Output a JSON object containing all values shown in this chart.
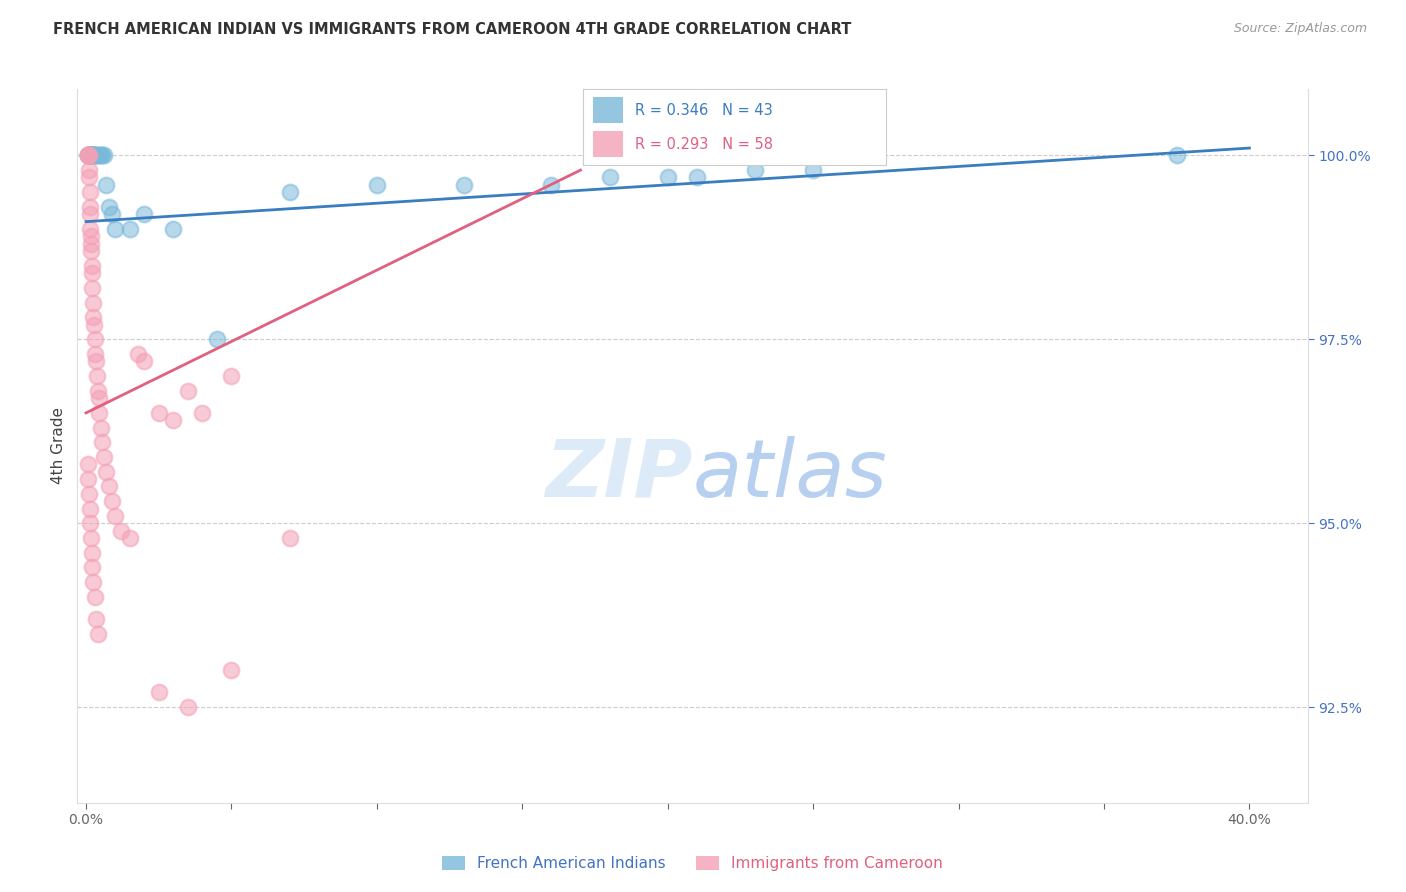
{
  "title": "FRENCH AMERICAN INDIAN VS IMMIGRANTS FROM CAMEROON 4TH GRADE CORRELATION CHART",
  "source": "Source: ZipAtlas.com",
  "ylabel": "4th Grade",
  "ytick_labels": [
    "92.5%",
    "95.0%",
    "97.5%",
    "100.0%"
  ],
  "ytick_values": [
    92.5,
    95.0,
    97.5,
    100.0
  ],
  "ymin": 91.2,
  "ymax": 100.9,
  "xmin": -0.3,
  "xmax": 42.0,
  "legend_blue_r": "R = 0.346",
  "legend_blue_n": "N = 43",
  "legend_pink_r": "R = 0.293",
  "legend_pink_n": "N = 58",
  "blue_color": "#7ab8d9",
  "pink_color": "#f4a0b5",
  "blue_line_color": "#3a7dc0",
  "pink_line_color": "#e06080",
  "bg_color": "#ffffff",
  "blue_x": [
    0.05,
    0.07,
    0.09,
    0.1,
    0.11,
    0.12,
    0.13,
    0.14,
    0.15,
    0.16,
    0.17,
    0.18,
    0.19,
    0.2,
    0.22,
    0.24,
    0.25,
    0.27,
    0.3,
    0.35,
    0.4,
    0.45,
    0.5,
    0.55,
    0.6,
    0.7,
    0.8,
    0.9,
    1.0,
    1.5,
    2.0,
    3.0,
    4.5,
    7.0,
    10.0,
    13.0,
    16.0,
    18.0,
    20.0,
    21.0,
    23.0,
    25.0,
    37.5
  ],
  "blue_y": [
    100.0,
    100.0,
    100.0,
    100.0,
    100.0,
    100.0,
    100.0,
    100.0,
    100.0,
    100.0,
    100.0,
    100.0,
    100.0,
    100.0,
    100.0,
    100.0,
    100.0,
    100.0,
    100.0,
    100.0,
    100.0,
    100.0,
    100.0,
    100.0,
    100.0,
    99.6,
    99.3,
    99.2,
    99.0,
    99.0,
    99.2,
    99.0,
    97.5,
    99.5,
    99.6,
    99.6,
    99.6,
    99.7,
    99.7,
    99.7,
    99.8,
    99.8,
    100.0
  ],
  "pink_x": [
    0.05,
    0.07,
    0.08,
    0.1,
    0.1,
    0.11,
    0.12,
    0.13,
    0.14,
    0.15,
    0.16,
    0.17,
    0.18,
    0.19,
    0.2,
    0.22,
    0.24,
    0.25,
    0.28,
    0.3,
    0.32,
    0.35,
    0.38,
    0.4,
    0.43,
    0.45,
    0.5,
    0.55,
    0.6,
    0.7,
    0.8,
    0.9,
    1.0,
    1.2,
    1.5,
    1.8,
    2.0,
    2.5,
    3.0,
    3.5,
    4.0,
    5.0,
    0.05,
    0.08,
    0.1,
    0.12,
    0.15,
    0.18,
    0.2,
    0.22,
    0.25,
    0.3,
    0.35,
    0.4,
    2.5,
    3.5,
    5.0,
    7.0
  ],
  "pink_y": [
    100.0,
    100.0,
    100.0,
    100.0,
    99.8,
    99.7,
    99.5,
    99.3,
    99.2,
    99.0,
    98.9,
    98.8,
    98.7,
    98.5,
    98.4,
    98.2,
    98.0,
    97.8,
    97.7,
    97.5,
    97.3,
    97.2,
    97.0,
    96.8,
    96.7,
    96.5,
    96.3,
    96.1,
    95.9,
    95.7,
    95.5,
    95.3,
    95.1,
    94.9,
    94.8,
    97.3,
    97.2,
    96.5,
    96.4,
    96.8,
    96.5,
    97.0,
    95.8,
    95.6,
    95.4,
    95.2,
    95.0,
    94.8,
    94.6,
    94.4,
    94.2,
    94.0,
    93.7,
    93.5,
    92.7,
    92.5,
    93.0,
    94.8
  ],
  "blue_trend_x": [
    0.0,
    40.0
  ],
  "blue_trend_y": [
    99.1,
    100.1
  ],
  "pink_trend_x": [
    0.0,
    17.0
  ],
  "pink_trend_y": [
    96.5,
    99.8
  ]
}
